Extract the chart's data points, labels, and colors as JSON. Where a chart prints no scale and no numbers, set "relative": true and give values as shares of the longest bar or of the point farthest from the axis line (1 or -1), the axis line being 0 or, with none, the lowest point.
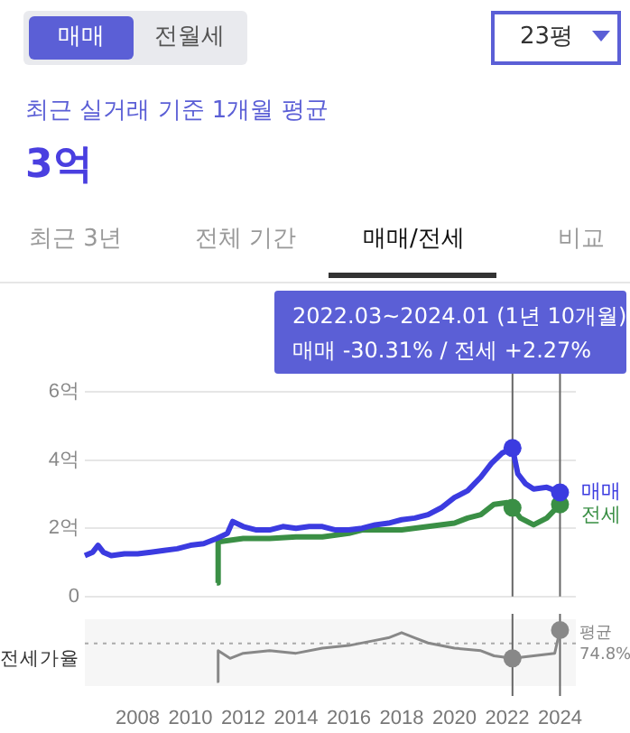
{
  "chart_data": [
    {
      "type": "line",
      "title": "최근 실거래 기준 1개월 평균",
      "subtitle": "3억",
      "annotations": [
        "매매",
        "전월세",
        "23평",
        "최근 3년",
        "전체 기간",
        "매매/전세",
        "비교",
        "2022.03~2024.01 (1년 10개월)",
        "매매 -30.31%  /  전세 +2.27%"
      ],
      "series": [
        {
          "name": "매매",
          "color": "#3b3be0",
          "x": [
            2006.0,
            2006.3,
            2006.5,
            2006.7,
            2007.0,
            2007.5,
            2008.0,
            2008.5,
            2009.0,
            2009.5,
            2010.0,
            2010.5,
            2011.0,
            2011.4,
            2011.6,
            2012.0,
            2012.5,
            2013.0,
            2013.5,
            2014.0,
            2014.5,
            2015.0,
            2015.5,
            2016.0,
            2016.5,
            2017.0,
            2017.5,
            2018.0,
            2018.5,
            2019.0,
            2019.5,
            2020.0,
            2020.5,
            2021.0,
            2021.4,
            2021.8,
            2022.2,
            2022.4,
            2022.7,
            2023.0,
            2023.5,
            2024.0
          ],
          "values": [
            1.2,
            1.3,
            1.5,
            1.3,
            1.2,
            1.25,
            1.25,
            1.3,
            1.35,
            1.4,
            1.5,
            1.55,
            1.7,
            1.85,
            2.2,
            2.05,
            1.95,
            1.95,
            2.05,
            2.0,
            2.05,
            2.05,
            1.95,
            1.95,
            2.0,
            2.1,
            2.15,
            2.25,
            2.3,
            2.4,
            2.6,
            2.9,
            3.1,
            3.5,
            3.9,
            4.2,
            4.35,
            3.6,
            3.3,
            3.15,
            3.2,
            3.05
          ]
        },
        {
          "name": "전세",
          "color": "#3a8f45",
          "x": [
            2011.0,
            2011.05,
            2011.5,
            2012.0,
            2013.0,
            2014.0,
            2015.0,
            2016.0,
            2016.5,
            2017.0,
            2018.0,
            2019.0,
            2020.0,
            2020.5,
            2021.0,
            2021.5,
            2022.0,
            2022.2,
            2022.5,
            2023.0,
            2023.5,
            2024.0
          ],
          "values": [
            0.4,
            1.6,
            1.65,
            1.7,
            1.7,
            1.75,
            1.75,
            1.85,
            1.95,
            1.95,
            1.95,
            2.05,
            2.15,
            2.3,
            2.4,
            2.7,
            2.75,
            2.6,
            2.3,
            2.1,
            2.3,
            2.7
          ]
        }
      ],
      "xlim": [
        2006.0,
        2024.6
      ],
      "xticks": [
        2008,
        2010,
        2012,
        2014,
        2016,
        2018,
        2020,
        2022,
        2024
      ],
      "ylim": [
        0,
        6
      ],
      "yticks": [
        {
          "value": 0,
          "label": "0"
        },
        {
          "value": 2,
          "label": "2억"
        },
        {
          "value": 4,
          "label": "4억"
        },
        {
          "value": 6,
          "label": "6억"
        }
      ],
      "ref_lines": [
        {
          "axis": "x",
          "value": 2022.2,
          "color": "#666666"
        },
        {
          "axis": "x",
          "value": 2024.0,
          "color": "#666666"
        }
      ],
      "grid": "y",
      "legend": false,
      "tick_labels": "y",
      "marker": "none"
    },
    {
      "type": "line",
      "ylabel": "전세가율",
      "relative": true,
      "series": [
        {
          "color": "#888888",
          "x": [
            2011.0,
            2011.05,
            2011.5,
            2012.0,
            2013.0,
            2014.0,
            2015.0,
            2016.0,
            2017.0,
            2017.5,
            2018.0,
            2018.5,
            2019.0,
            2020.0,
            2021.0,
            2021.5,
            2022.2,
            2023.0,
            2023.8,
            2024.0
          ],
          "values": [
            0,
            0.6,
            0.45,
            0.55,
            0.6,
            0.55,
            0.65,
            0.7,
            0.8,
            0.85,
            0.95,
            0.85,
            0.75,
            0.65,
            0.6,
            0.5,
            0.45,
            0.5,
            0.55,
            1
          ]
        }
      ],
      "xlim": [
        2006.0,
        2024.6
      ],
      "xticks": [
        2008,
        2010,
        2012,
        2014,
        2016,
        2018,
        2020,
        2022,
        2024
      ],
      "ref_lines": [
        {
          "axis": "y",
          "value": 0.74,
          "label": "평균 74.8%",
          "color": "#aaaaaa",
          "line_style": "dotted"
        },
        {
          "axis": "x",
          "value": 2022.2,
          "color": "#666666"
        },
        {
          "axis": "x",
          "value": 2024.0,
          "color": "#666666"
        }
      ],
      "grid": false,
      "legend": false,
      "tick_labels": "x",
      "marker": "none"
    }
  ]
}
